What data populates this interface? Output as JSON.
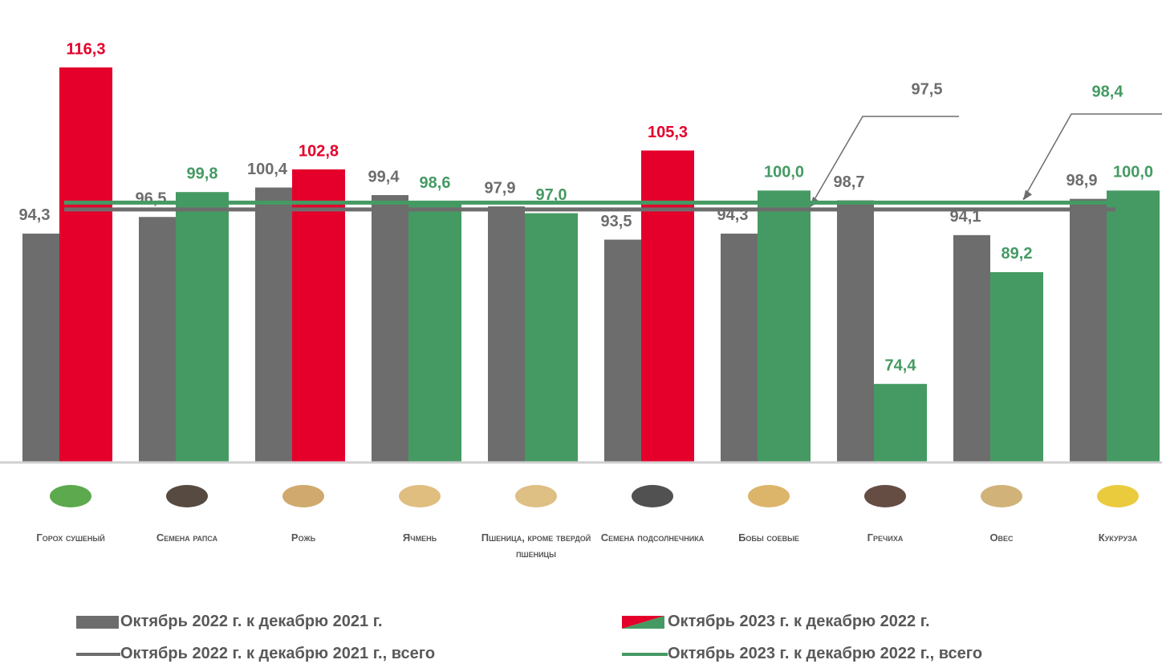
{
  "chart_data": {
    "type": "bar",
    "categories": [
      "Горох сушеный",
      "Семена рапса",
      "Рожь",
      "Ячмень",
      "Пшеница, кроме твердой пшеницы",
      "Семена подсолнечника",
      "Бобы соевые",
      "Гречиха",
      "Овес",
      "Кукуруза"
    ],
    "series": [
      {
        "name": "Октябрь 2022 г. к декабрю 2021 г.",
        "color": "#6d6d6d",
        "values": [
          94.3,
          96.5,
          100.4,
          99.4,
          97.9,
          93.5,
          94.3,
          98.7,
          94.1,
          98.9
        ],
        "value_labels": [
          "94,3",
          "96,5",
          "100,4",
          "99,4",
          "97,9",
          "93,5",
          "94,3",
          "98,7",
          "94,1",
          "98,9"
        ]
      },
      {
        "name": "Октябрь 2023 г. к декабрю 2022 г.",
        "colors": [
          "#e4002b",
          "#459a63",
          "#e4002b",
          "#459a63",
          "#459a63",
          "#e4002b",
          "#459a63",
          "#459a63",
          "#459a63",
          "#459a63"
        ],
        "values": [
          116.3,
          99.8,
          102.8,
          98.6,
          97.0,
          105.3,
          100.0,
          74.4,
          89.2,
          100.0
        ],
        "value_labels": [
          "116,3",
          "99,8",
          "102,8",
          "98,6",
          "97,0",
          "105,3",
          "100,0",
          "74,4",
          "89,2",
          "100,0"
        ]
      }
    ],
    "lines": [
      {
        "name": "Октябрь 2022 г. к декабрю 2021 г., всего",
        "color": "#6d6d6d",
        "value": 97.5,
        "value_label": "97,5"
      },
      {
        "name": "Октябрь 2023 г. к декабрю 2022 г., всего",
        "color": "#459a63",
        "value": 98.4,
        "value_label": "98,4"
      }
    ],
    "ylim": [
      64,
      118
    ]
  }
}
